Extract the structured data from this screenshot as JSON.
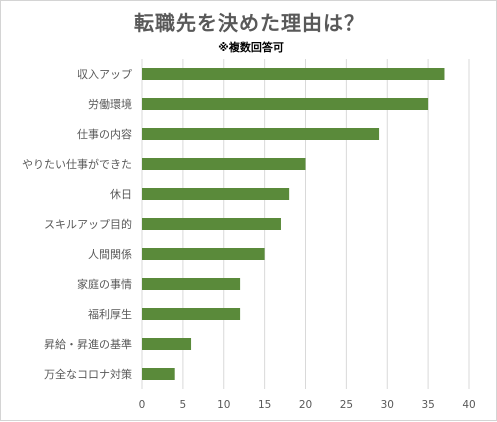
{
  "chart_data": {
    "type": "bar",
    "orientation": "horizontal",
    "title": "転職先を決めた理由は？",
    "subtitle": "※複数回答可",
    "categories": [
      "収入アップ",
      "労働環境",
      "仕事の内容",
      "やりたい仕事ができた",
      "休日",
      "スキルアップ目的",
      "人間関係",
      "家庭の事情",
      "福利厚生",
      "昇給・昇進の基準",
      "万全なコロナ対策"
    ],
    "values": [
      37,
      35,
      29,
      20,
      18,
      17,
      15,
      12,
      12,
      6,
      4
    ],
    "xlim": [
      0,
      40
    ],
    "xticks": [
      0,
      5,
      10,
      15,
      20,
      25,
      30,
      35,
      40
    ],
    "xlabel": "",
    "ylabel": "",
    "grid": "vertical",
    "legend": "none",
    "bar_color": "#5a8a3a",
    "grid_color": "#d9d9d9",
    "text_color": "#595959"
  }
}
